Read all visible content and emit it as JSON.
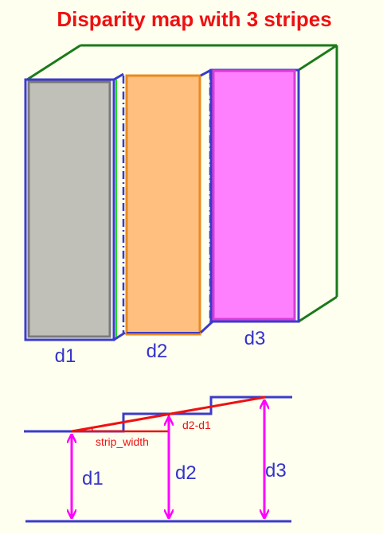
{
  "title": "Disparity map with 3 stripes",
  "stripes": [
    {
      "label": "d1",
      "fill": "#c0c0b8",
      "border": "#7a7a7a"
    },
    {
      "label": "d2",
      "fill": "#ffbf7f",
      "border": "#ea8a1e"
    },
    {
      "label": "d3",
      "fill": "#ff80ff",
      "border": "#d83cd8"
    }
  ],
  "bottom_labels": {
    "strip_width": "strip_width",
    "d2_minus_d1": "d2-d1",
    "d1": "d1",
    "d2": "d2",
    "d3": "d3"
  },
  "colors": {
    "background": "#fffff0",
    "title": "#ee1111",
    "label": "#3333cc",
    "blue_line": "#3b3bcc",
    "green_line": "#1a7a1a",
    "red_line": "#ee1111",
    "magenta_arrow": "#ff00ff"
  }
}
